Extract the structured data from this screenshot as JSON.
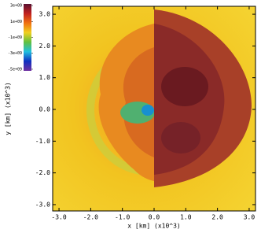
{
  "chart_data": {
    "type": "heatmap",
    "xlabel": "x [km] (x10^3)",
    "ylabel": "y [km] (x10^3)",
    "xlim": [
      -3.2,
      3.2
    ],
    "ylim": [
      -3.2,
      3.25
    ],
    "xticks": [
      {
        "value": -3,
        "label": "-3.0"
      },
      {
        "value": -2,
        "label": "-2.0"
      },
      {
        "value": -1,
        "label": "-1.0"
      },
      {
        "value": 0,
        "label": "0.0"
      },
      {
        "value": 1,
        "label": "1.0"
      },
      {
        "value": 2,
        "label": "2.0"
      },
      {
        "value": 3,
        "label": "3.0"
      }
    ],
    "yticks": [
      {
        "value": -3,
        "label": "-3.0"
      },
      {
        "value": -2,
        "label": "-2.0"
      },
      {
        "value": -1,
        "label": "-1.0"
      },
      {
        "value": 0,
        "label": "0.0"
      },
      {
        "value": 1,
        "label": "1.0"
      },
      {
        "value": 2,
        "label": "2.0"
      },
      {
        "value": 3,
        "label": "3.0"
      }
    ],
    "colorbar": {
      "lim": [
        -5200000000,
        3200000000
      ],
      "ticks": [
        {
          "value": 3000000000,
          "label": "3e+09"
        },
        {
          "value": 1000000000,
          "label": "1e+09"
        },
        {
          "value": -1000000000,
          "label": "-1e+09"
        },
        {
          "value": -3000000000,
          "label": "-3e+09"
        },
        {
          "value": -5000000000,
          "label": "-5e+09"
        }
      ],
      "colormap": [
        "#5a1030",
        "#c02020",
        "#f07010",
        "#f0d020",
        "#60c040",
        "#20c0e0",
        "#1030c0",
        "#7030a0"
      ]
    }
  }
}
